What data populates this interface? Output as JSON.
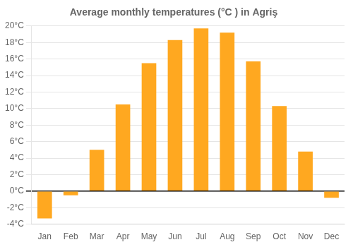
{
  "chart_data": {
    "type": "bar",
    "title": "Average monthly temperatures (°C ) in Agriş",
    "categories": [
      "Jan",
      "Feb",
      "Mar",
      "Apr",
      "May",
      "Jun",
      "Jul",
      "Aug",
      "Sep",
      "Oct",
      "Nov",
      "Dec"
    ],
    "values": [
      -3.3,
      -0.5,
      5.0,
      10.5,
      15.5,
      18.3,
      19.7,
      19.2,
      15.7,
      10.3,
      4.8,
      -0.8
    ],
    "color": "#FFA820",
    "ylim": [
      -4,
      20
    ],
    "yticks": [
      {
        "value": -4,
        "label": "-4°C"
      },
      {
        "value": -2,
        "label": "-2°C"
      },
      {
        "value": 0,
        "label": "0°C"
      },
      {
        "value": 2,
        "label": "2°C"
      },
      {
        "value": 4,
        "label": "4°C"
      },
      {
        "value": 6,
        "label": "6°C"
      },
      {
        "value": 8,
        "label": "8°C"
      },
      {
        "value": 10,
        "label": "10°C"
      },
      {
        "value": 12,
        "label": "12°C"
      },
      {
        "value": 14,
        "label": "14°C"
      },
      {
        "value": 16,
        "label": "16°C"
      },
      {
        "value": 18,
        "label": "18°C"
      },
      {
        "value": 20,
        "label": "20°C"
      }
    ],
    "grid": true
  }
}
